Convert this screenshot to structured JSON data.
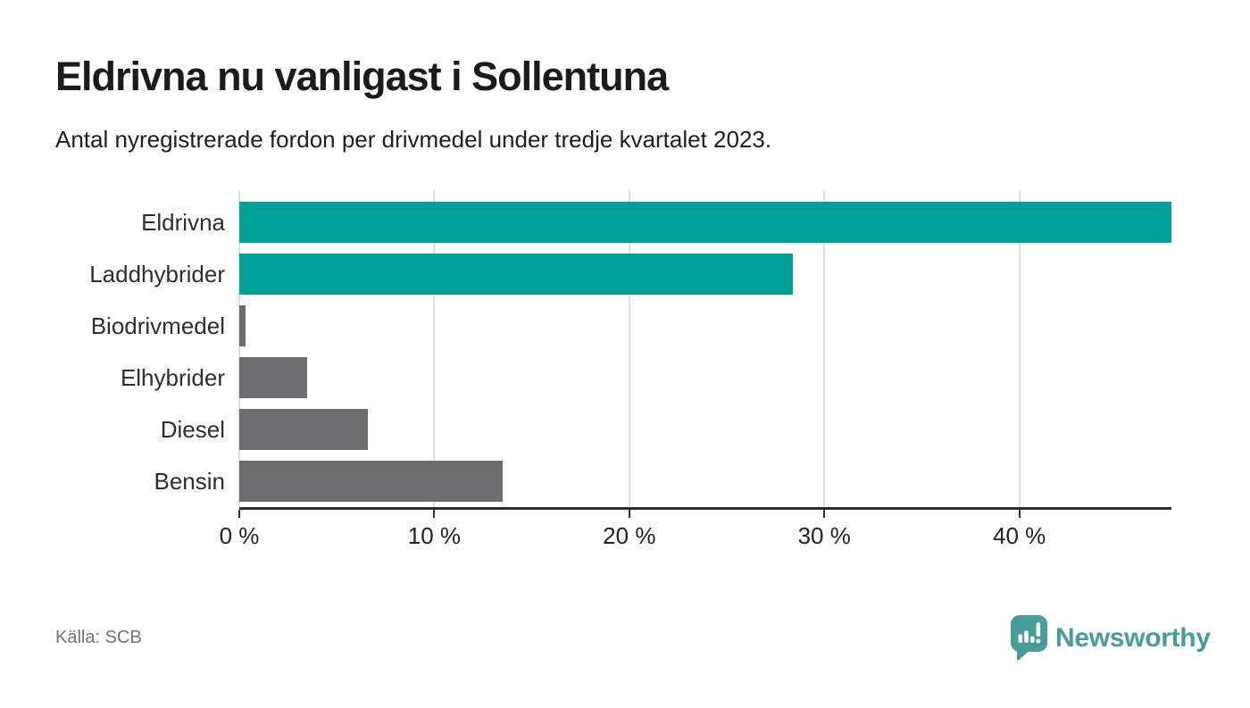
{
  "header": {
    "title": "Eldrivna nu vanligast i Sollentuna",
    "subtitle": "Antal nyregistrerade fordon per drivmedel under tredje kvartalet 2023."
  },
  "footer": {
    "source": "Källa: SCB",
    "brand_name": "Newsworthy",
    "brand_icon": "speech-bubble-with-bar-chart-and-exclamation"
  },
  "colors": {
    "highlight_teal": "#00A096",
    "bar_gray": "#6D6C6E",
    "gridline": "#E0E0E0",
    "axis": "#2D2D2D",
    "brand_teal": "#459E99",
    "title_text": "#1B1B1B",
    "label_text": "#2E2E2E",
    "source_text": "#737373"
  },
  "chart_data": {
    "type": "bar",
    "orientation": "horizontal",
    "title": "Eldrivna nu vanligast i Sollentuna",
    "subtitle": "Antal nyregistrerade fordon per drivmedel under tredje kvartalet 2023.",
    "categories": [
      "Eldrivna",
      "Laddhybrider",
      "Biodrivmedel",
      "Elhybrider",
      "Diesel",
      "Bensin"
    ],
    "values": [
      47.8,
      28.4,
      0.3,
      3.5,
      6.6,
      13.5
    ],
    "unit": "%",
    "bar_colors": [
      "#00A096",
      "#00A096",
      "#6D6C6E",
      "#6D6C6E",
      "#6D6C6E",
      "#6D6C6E"
    ],
    "xlim": [
      0,
      47.8
    ],
    "xticks": [
      0,
      10,
      20,
      30,
      40
    ],
    "xtick_suffix": " %",
    "grid": true,
    "legend": false,
    "source": "Källa: SCB"
  }
}
